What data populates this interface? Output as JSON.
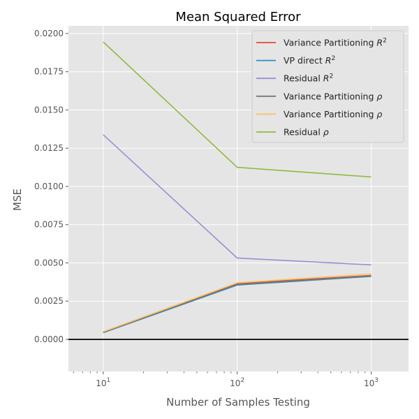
{
  "chart_data": {
    "type": "line",
    "title": "Mean Squared Error",
    "xlabel": "Number of Samples Testing",
    "ylabel": "MSE",
    "xscale": "log",
    "xlim": [
      5.5,
      1900
    ],
    "ylim": [
      -0.0021,
      0.0205
    ],
    "x": [
      10,
      100,
      1000
    ],
    "x_ticks": [
      {
        "value": 10,
        "base": "10",
        "exp": "1"
      },
      {
        "value": 100,
        "base": "10",
        "exp": "2"
      },
      {
        "value": 1000,
        "base": "10",
        "exp": "3"
      }
    ],
    "y_ticks": [
      {
        "value": 0.0,
        "label": "0.0000"
      },
      {
        "value": 0.0025,
        "label": "0.0025"
      },
      {
        "value": 0.005,
        "label": "0.0050"
      },
      {
        "value": 0.0075,
        "label": "0.0075"
      },
      {
        "value": 0.01,
        "label": "0.0100"
      },
      {
        "value": 0.0125,
        "label": "0.0125"
      },
      {
        "value": 0.015,
        "label": "0.0150"
      },
      {
        "value": 0.0175,
        "label": "0.0175"
      },
      {
        "value": 0.02,
        "label": "0.0200"
      }
    ],
    "hline": {
      "y": 0,
      "color": "#000000"
    },
    "legend_position": "top-right",
    "series": [
      {
        "name": "Variance Partitioning R^2",
        "label_text": "Variance Partitioning ",
        "label_sym": "R",
        "label_sup": "2",
        "color": "#E24A33",
        "values": [
          0.00048,
          0.00365,
          0.00418
        ]
      },
      {
        "name": "VP direct R^2",
        "label_text": "VP direct ",
        "label_sym": "R",
        "label_sup": "2",
        "color": "#348ABD",
        "values": [
          0.00044,
          0.00355,
          0.00412
        ]
      },
      {
        "name": "Residual R^2",
        "label_text": "Residual ",
        "label_sym": "R",
        "label_sup": "2",
        "color": "#988ED5",
        "values": [
          0.01338,
          0.00532,
          0.00487
        ]
      },
      {
        "name": "Variance Partitioning rho",
        "label_text": "Variance Partitioning ",
        "label_sym": "ρ",
        "label_sup": "",
        "color": "#777777",
        "values": [
          0.00046,
          0.0036,
          0.00415
        ]
      },
      {
        "name": "Variance Partitioning rho (2)",
        "label_text": "Variance Partitioning ",
        "label_sym": "ρ",
        "label_sup": "",
        "color": "#FBC15E",
        "values": [
          0.0005,
          0.0037,
          0.00428
        ]
      },
      {
        "name": "Residual rho",
        "label_text": "Residual ",
        "label_sym": "ρ",
        "label_sup": "",
        "color": "#8EBA42",
        "values": [
          0.01945,
          0.01125,
          0.01062
        ]
      }
    ]
  }
}
